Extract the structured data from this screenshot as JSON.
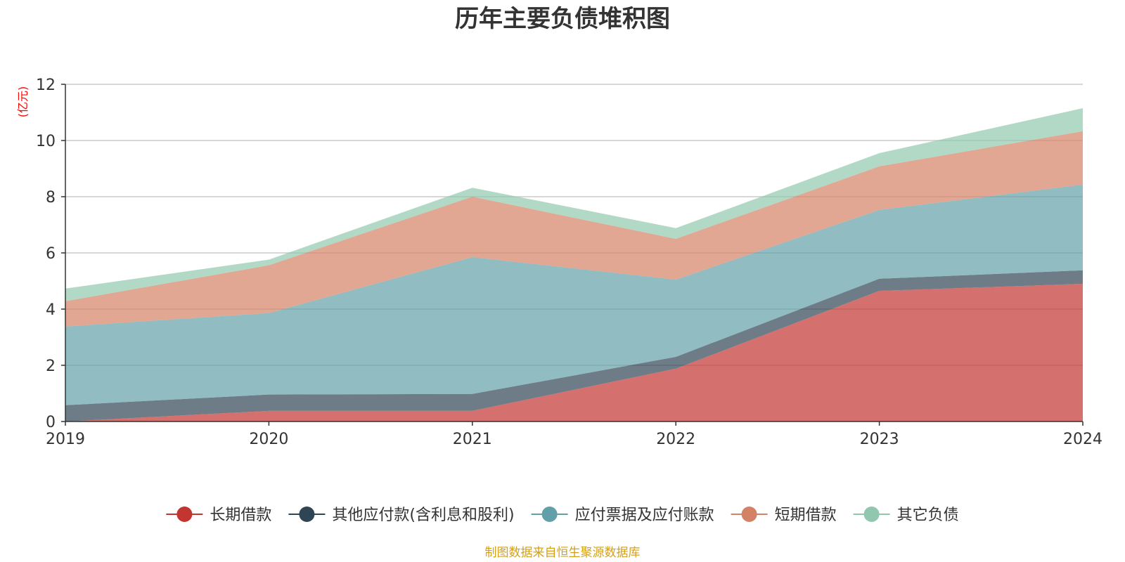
{
  "chart_data": {
    "type": "area",
    "stacked": true,
    "title": "历年主要负债堆积图",
    "unit_label": "(亿元)",
    "ylim": [
      0,
      12
    ],
    "y_ticks": [
      "0",
      "2",
      "4",
      "6",
      "8",
      "10",
      "12"
    ],
    "categories": [
      "2019",
      "2020",
      "2021",
      "2022",
      "2023",
      "2024"
    ],
    "grid": true,
    "legend_position": "bottom",
    "series": [
      {
        "name": "长期借款",
        "color": "#c23531",
        "values": [
          0.0,
          0.38,
          0.38,
          1.88,
          4.65,
          4.9
        ]
      },
      {
        "name": "其他应付款(含利息和股利)",
        "color": "#2f4554",
        "values": [
          0.58,
          0.58,
          0.6,
          0.42,
          0.43,
          0.48
        ]
      },
      {
        "name": "应付票据及应付账款",
        "color": "#61a0a8",
        "values": [
          2.8,
          2.9,
          4.87,
          2.75,
          2.45,
          3.05
        ]
      },
      {
        "name": "短期借款",
        "color": "#d48265",
        "values": [
          0.9,
          1.7,
          2.15,
          1.45,
          1.55,
          1.9
        ]
      },
      {
        "name": "其它负债",
        "color": "#91c7ae",
        "values": [
          0.45,
          0.2,
          0.32,
          0.38,
          0.47,
          0.82
        ]
      }
    ],
    "source": "制图数据来自恒生聚源数据库",
    "source_color": "#d4a017",
    "unit_color": "#ff0000"
  }
}
